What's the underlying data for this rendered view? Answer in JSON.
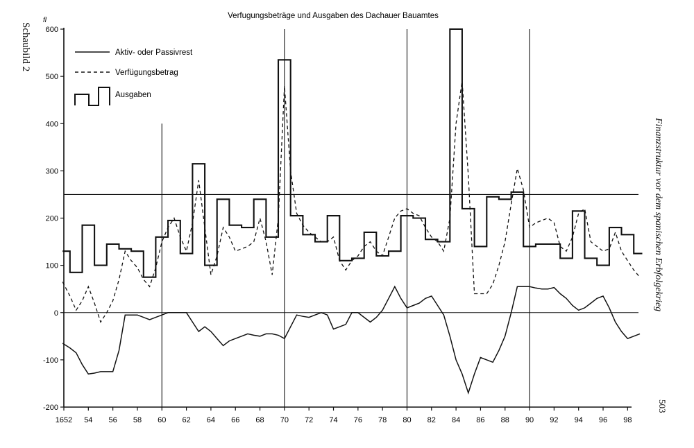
{
  "side_label": "Schaubild 2",
  "running_head": "Finanzstruktur vor dem spanischen Erbfolgekrieg",
  "page_number": "503",
  "chart_data": {
    "type": "line",
    "title": "Verfugungsbeträge und Ausgaben des Dachauer Bauamtes",
    "ylabel": "fl",
    "xlabel": "",
    "xlim": [
      1652,
      1699
    ],
    "ylim": [
      -200,
      600
    ],
    "yticks": [
      -200,
      -100,
      0,
      100,
      200,
      300,
      400,
      500,
      600
    ],
    "xticks": [
      {
        "value": 1652,
        "label": "1652"
      },
      {
        "value": 1654,
        "label": "54"
      },
      {
        "value": 1656,
        "label": "56"
      },
      {
        "value": 1658,
        "label": "58"
      },
      {
        "value": 1660,
        "label": "60"
      },
      {
        "value": 1662,
        "label": "62"
      },
      {
        "value": 1664,
        "label": "64"
      },
      {
        "value": 1666,
        "label": "66"
      },
      {
        "value": 1668,
        "label": "68"
      },
      {
        "value": 1670,
        "label": "70"
      },
      {
        "value": 1672,
        "label": "72"
      },
      {
        "value": 1674,
        "label": "74"
      },
      {
        "value": 1676,
        "label": "76"
      },
      {
        "value": 1678,
        "label": "78"
      },
      {
        "value": 1680,
        "label": "80"
      },
      {
        "value": 1682,
        "label": "82"
      },
      {
        "value": 1684,
        "label": "84"
      },
      {
        "value": 1686,
        "label": "86"
      },
      {
        "value": 1688,
        "label": "88"
      },
      {
        "value": 1690,
        "label": "90"
      },
      {
        "value": 1692,
        "label": "92"
      },
      {
        "value": 1694,
        "label": "94"
      },
      {
        "value": 1696,
        "label": "96"
      },
      {
        "value": 1698,
        "label": "98"
      }
    ],
    "hlines": [
      250,
      0
    ],
    "vlines": [
      1660,
      1670,
      1680,
      1690
    ],
    "legend_position": "top-left",
    "series": [
      {
        "name": "Aktiv- oder Passivrest",
        "style": "solid",
        "x": [
          1651.9,
          1652.5,
          1653,
          1653.5,
          1654,
          1654.5,
          1655,
          1655.5,
          1656,
          1656.5,
          1657,
          1657.5,
          1658,
          1658.5,
          1659,
          1659.5,
          1660,
          1660.5,
          1661,
          1661.5,
          1662,
          1662.5,
          1663,
          1663.5,
          1664,
          1664.5,
          1665,
          1665.5,
          1666,
          1666.5,
          1667,
          1667.5,
          1668,
          1668.5,
          1669,
          1669.5,
          1670,
          1670.5,
          1671,
          1671.5,
          1672,
          1672.5,
          1673,
          1673.5,
          1674,
          1674.5,
          1675,
          1675.5,
          1676,
          1676.5,
          1677,
          1677.5,
          1678,
          1678.5,
          1679,
          1679.5,
          1680,
          1680.5,
          1681,
          1681.5,
          1682,
          1682.5,
          1683,
          1683.5,
          1684,
          1684.5,
          1685,
          1685.5,
          1686,
          1686.5,
          1687,
          1687.5,
          1688,
          1688.5,
          1689,
          1689.5,
          1690,
          1690.5,
          1691,
          1691.5,
          1692,
          1692.5,
          1693,
          1693.5,
          1694,
          1694.5,
          1695,
          1695.5,
          1696,
          1696.5,
          1697,
          1697.5,
          1698,
          1698.5,
          1699
        ],
        "y": [
          -65,
          -75,
          -85,
          -110,
          -130,
          -128,
          -125,
          -125,
          -125,
          -80,
          -5,
          -5,
          -5,
          -10,
          -15,
          -10,
          -5,
          0,
          0,
          0,
          0,
          -20,
          -40,
          -30,
          -40,
          -55,
          -70,
          -60,
          -55,
          -50,
          -45,
          -48,
          -50,
          -45,
          -45,
          -48,
          -55,
          -30,
          -5,
          -8,
          -10,
          -5,
          0,
          -5,
          -35,
          -30,
          -25,
          0,
          0,
          -10,
          -20,
          -10,
          5,
          30,
          55,
          30,
          10,
          15,
          20,
          30,
          35,
          15,
          -5,
          -50,
          -100,
          -130,
          -170,
          -130,
          -95,
          -100,
          -105,
          -80,
          -50,
          0,
          55,
          55,
          55,
          52,
          50,
          50,
          53,
          40,
          30,
          15,
          5,
          10,
          20,
          30,
          35,
          10,
          -20,
          -40,
          -55,
          -50,
          -45
        ],
        "legend_position": "top-left"
      },
      {
        "name": "Verfügungsbetrag",
        "style": "dashed",
        "x": [
          1651.9,
          1652.5,
          1653,
          1653.5,
          1654,
          1654.5,
          1655,
          1655.5,
          1656,
          1656.5,
          1657,
          1657.5,
          1658,
          1658.5,
          1659,
          1659.5,
          1660,
          1660.5,
          1661,
          1661.5,
          1662,
          1662.5,
          1663,
          1663.5,
          1664,
          1664.5,
          1665,
          1665.5,
          1666,
          1666.5,
          1667,
          1667.5,
          1668,
          1668.5,
          1669,
          1669.5,
          1670,
          1670.5,
          1671,
          1671.5,
          1672,
          1672.5,
          1673,
          1673.5,
          1674,
          1674.5,
          1675,
          1675.5,
          1676,
          1676.5,
          1677,
          1677.5,
          1678,
          1678.5,
          1679,
          1679.5,
          1680,
          1680.5,
          1681,
          1681.5,
          1682,
          1682.5,
          1683,
          1683.5,
          1684,
          1684.5,
          1685,
          1685.5,
          1686,
          1686.5,
          1687,
          1687.5,
          1688,
          1688.5,
          1689,
          1689.5,
          1690,
          1690.5,
          1691,
          1691.5,
          1692,
          1692.5,
          1693,
          1693.5,
          1694,
          1694.5,
          1695,
          1695.5,
          1696,
          1696.5,
          1697,
          1697.5,
          1698,
          1698.5,
          1699
        ],
        "y": [
          65,
          35,
          5,
          25,
          55,
          20,
          -20,
          0,
          25,
          70,
          130,
          110,
          95,
          70,
          55,
          95,
          150,
          180,
          200,
          160,
          130,
          190,
          280,
          180,
          80,
          120,
          180,
          160,
          130,
          135,
          140,
          150,
          200,
          150,
          80,
          200,
          480,
          300,
          210,
          185,
          170,
          160,
          150,
          150,
          160,
          110,
          90,
          110,
          120,
          140,
          150,
          130,
          120,
          160,
          200,
          215,
          220,
          210,
          205,
          180,
          160,
          150,
          130,
          200,
          400,
          490,
          290,
          40,
          40,
          40,
          60,
          100,
          150,
          230,
          305,
          260,
          180,
          190,
          195,
          200,
          190,
          140,
          130,
          160,
          210,
          220,
          150,
          140,
          130,
          135,
          170,
          130,
          110,
          90,
          75
        ],
        "legend_position": "top-left"
      },
      {
        "name": "Ausgaben",
        "style": "step",
        "steps": [
          [
            1651.9,
            1652.5,
            130
          ],
          [
            1652.5,
            1653.5,
            85
          ],
          [
            1653.5,
            1654.5,
            185
          ],
          [
            1654.5,
            1655.5,
            100
          ],
          [
            1655.5,
            1656.5,
            145
          ],
          [
            1656.5,
            1657.5,
            135
          ],
          [
            1657.5,
            1658.5,
            130
          ],
          [
            1658.5,
            1659.5,
            75
          ],
          [
            1659.5,
            1660.5,
            160
          ],
          [
            1660.5,
            1661.5,
            195
          ],
          [
            1661.5,
            1662.5,
            125
          ],
          [
            1662.5,
            1663.5,
            315
          ],
          [
            1663.5,
            1664.5,
            100
          ],
          [
            1664.5,
            1665.5,
            240
          ],
          [
            1665.5,
            1666.5,
            185
          ],
          [
            1666.5,
            1667.5,
            180
          ],
          [
            1667.5,
            1668.5,
            240
          ],
          [
            1668.5,
            1669.5,
            160
          ],
          [
            1669.5,
            1670.5,
            535
          ],
          [
            1670.5,
            1671.5,
            205
          ],
          [
            1671.5,
            1672.5,
            165
          ],
          [
            1672.5,
            1673.5,
            150
          ],
          [
            1673.5,
            1674.5,
            205
          ],
          [
            1674.5,
            1675.5,
            110
          ],
          [
            1675.5,
            1676.5,
            115
          ],
          [
            1676.5,
            1677.5,
            170
          ],
          [
            1677.5,
            1678.5,
            120
          ],
          [
            1678.5,
            1679.5,
            130
          ],
          [
            1679.5,
            1680.5,
            205
          ],
          [
            1680.5,
            1681.5,
            200
          ],
          [
            1681.5,
            1682.5,
            155
          ],
          [
            1682.5,
            1683.5,
            150
          ],
          [
            1683.5,
            1684.5,
            600
          ],
          [
            1684.5,
            1685.5,
            220
          ],
          [
            1685.5,
            1686.5,
            140
          ],
          [
            1686.5,
            1687.5,
            245
          ],
          [
            1687.5,
            1688.5,
            240
          ],
          [
            1688.5,
            1689.5,
            255
          ],
          [
            1689.5,
            1690.5,
            140
          ],
          [
            1690.5,
            1692.5,
            145
          ],
          [
            1692.5,
            1693.5,
            115
          ],
          [
            1693.5,
            1694.5,
            215
          ],
          [
            1694.5,
            1695.5,
            115
          ],
          [
            1695.5,
            1696.5,
            100
          ],
          [
            1696.5,
            1697.5,
            180
          ],
          [
            1697.5,
            1698.5,
            165
          ],
          [
            1698.5,
            1699.2,
            125
          ]
        ]
      }
    ]
  }
}
